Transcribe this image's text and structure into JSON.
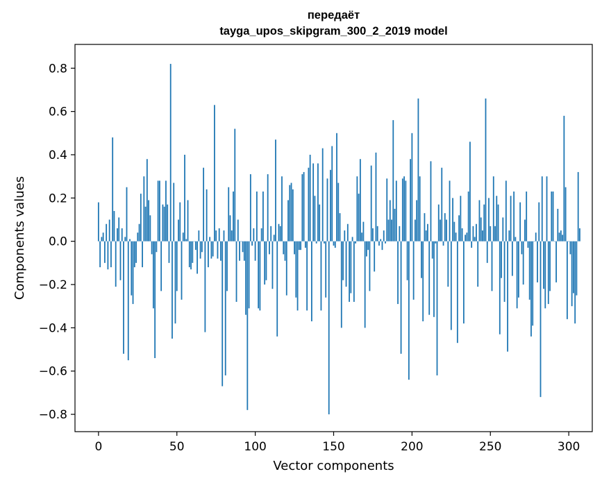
{
  "chart_data": {
    "type": "bar",
    "title_line1": "передаёт",
    "title_line2": "tayga_upos_skipgram_300_2_2019 model",
    "xlabel": "Vector components",
    "ylabel": "Components values",
    "xlim": [
      -15,
      315
    ],
    "ylim": [
      -0.88,
      0.91
    ],
    "x_ticks": [
      0,
      50,
      100,
      150,
      200,
      250,
      300
    ],
    "y_ticks": [
      -0.8,
      -0.6,
      -0.4,
      -0.2,
      0.0,
      0.2,
      0.4,
      0.6,
      0.8
    ],
    "x_tick_labels": [
      "0",
      "50",
      "100",
      "150",
      "200",
      "250",
      "300"
    ],
    "y_tick_labels": [
      "−0.8",
      "−0.6",
      "−0.4",
      "−0.2",
      "0.0",
      "0.2",
      "0.4",
      "0.6",
      "0.8"
    ],
    "bar_color": "#1f77b4",
    "values": [
      0.18,
      -0.12,
      0.02,
      0.04,
      -0.1,
      0.08,
      -0.13,
      0.1,
      -0.12,
      0.48,
      0.14,
      -0.21,
      0.06,
      0.11,
      -0.18,
      0.06,
      -0.52,
      0.02,
      0.25,
      -0.55,
      0.01,
      -0.25,
      -0.29,
      -0.12,
      -0.1,
      0.04,
      0.08,
      0.22,
      -0.12,
      0.3,
      0.16,
      0.38,
      0.19,
      0.12,
      -0.06,
      -0.31,
      -0.54,
      -0.05,
      0.28,
      0.28,
      -0.23,
      0.17,
      0.16,
      0.28,
      0.17,
      -0.1,
      0.82,
      -0.45,
      0.27,
      -0.38,
      -0.23,
      0.1,
      0.18,
      -0.27,
      0.04,
      0.4,
      0.01,
      0.19,
      -0.12,
      -0.13,
      -0.1,
      0.0,
      -0.04,
      -0.15,
      0.05,
      -0.08,
      -0.05,
      0.34,
      -0.42,
      0.24,
      -0.12,
      0.02,
      -0.08,
      -0.07,
      0.63,
      0.05,
      -0.08,
      0.06,
      -0.09,
      -0.67,
      0.05,
      -0.62,
      -0.23,
      0.25,
      0.12,
      0.05,
      0.23,
      0.52,
      -0.28,
      0.1,
      -0.09,
      0.0,
      -0.05,
      -0.09,
      -0.34,
      -0.78,
      -0.31,
      0.31,
      -0.02,
      0.06,
      -0.09,
      0.23,
      -0.31,
      -0.32,
      0.06,
      0.23,
      -0.2,
      -0.18,
      0.31,
      -0.06,
      0.07,
      -0.22,
      0.03,
      0.47,
      -0.44,
      0.08,
      0.07,
      0.3,
      -0.06,
      -0.09,
      -0.25,
      0.19,
      0.26,
      0.27,
      0.24,
      -0.06,
      -0.26,
      -0.32,
      -0.04,
      -0.04,
      0.31,
      0.32,
      -0.03,
      -0.32,
      0.34,
      0.4,
      -0.37,
      0.36,
      0.21,
      -0.01,
      0.36,
      0.17,
      -0.32,
      0.43,
      -0.01,
      -0.26,
      0.29,
      -0.8,
      0.33,
      0.44,
      -0.02,
      -0.03,
      0.5,
      0.27,
      0.13,
      -0.4,
      -0.18,
      0.05,
      -0.21,
      0.08,
      -0.28,
      -0.24,
      0.02,
      -0.28,
      -0.01,
      0.3,
      0.22,
      0.38,
      0.04,
      0.09,
      -0.4,
      -0.07,
      -0.04,
      -0.23,
      0.35,
      0.06,
      -0.14,
      0.41,
      0.07,
      -0.02,
      0.01,
      -0.04,
      0.05,
      -0.01,
      0.29,
      0.1,
      0.19,
      0.1,
      0.56,
      0.15,
      0.28,
      -0.29,
      0.07,
      -0.52,
      0.29,
      0.3,
      0.28,
      -0.18,
      -0.64,
      0.38,
      0.5,
      -0.27,
      0.1,
      0.19,
      0.66,
      0.3,
      -0.17,
      -0.37,
      0.13,
      0.05,
      0.08,
      -0.34,
      0.37,
      -0.08,
      -0.35,
      -0.01,
      -0.62,
      0.17,
      0.1,
      0.34,
      -0.02,
      0.13,
      0.1,
      -0.21,
      0.28,
      -0.41,
      0.2,
      0.09,
      0.04,
      -0.47,
      0.12,
      0.21,
      0.06,
      -0.38,
      0.03,
      0.04,
      0.23,
      0.46,
      -0.03,
      0.07,
      0.02,
      0.08,
      -0.21,
      0.19,
      0.11,
      0.05,
      0.17,
      0.66,
      -0.1,
      0.2,
      0.07,
      -0.23,
      0.3,
      0.07,
      0.21,
      0.17,
      -0.43,
      -0.17,
      0.11,
      -0.28,
      0.28,
      -0.51,
      0.05,
      0.21,
      -0.16,
      0.23,
      0.02,
      -0.31,
      -0.26,
      0.18,
      -0.06,
      -0.2,
      0.1,
      0.23,
      -0.03,
      -0.27,
      -0.44,
      -0.39,
      0.0,
      0.04,
      -0.19,
      0.18,
      -0.72,
      0.3,
      -0.22,
      -0.31,
      0.3,
      -0.29,
      -0.23,
      0.23,
      0.23,
      0.0,
      -0.19,
      0.15,
      0.04,
      0.05,
      0.03,
      0.58,
      0.25,
      -0.36,
      0.0,
      -0.06,
      -0.3,
      -0.24,
      -0.38,
      -0.25,
      0.32,
      0.06
    ]
  }
}
